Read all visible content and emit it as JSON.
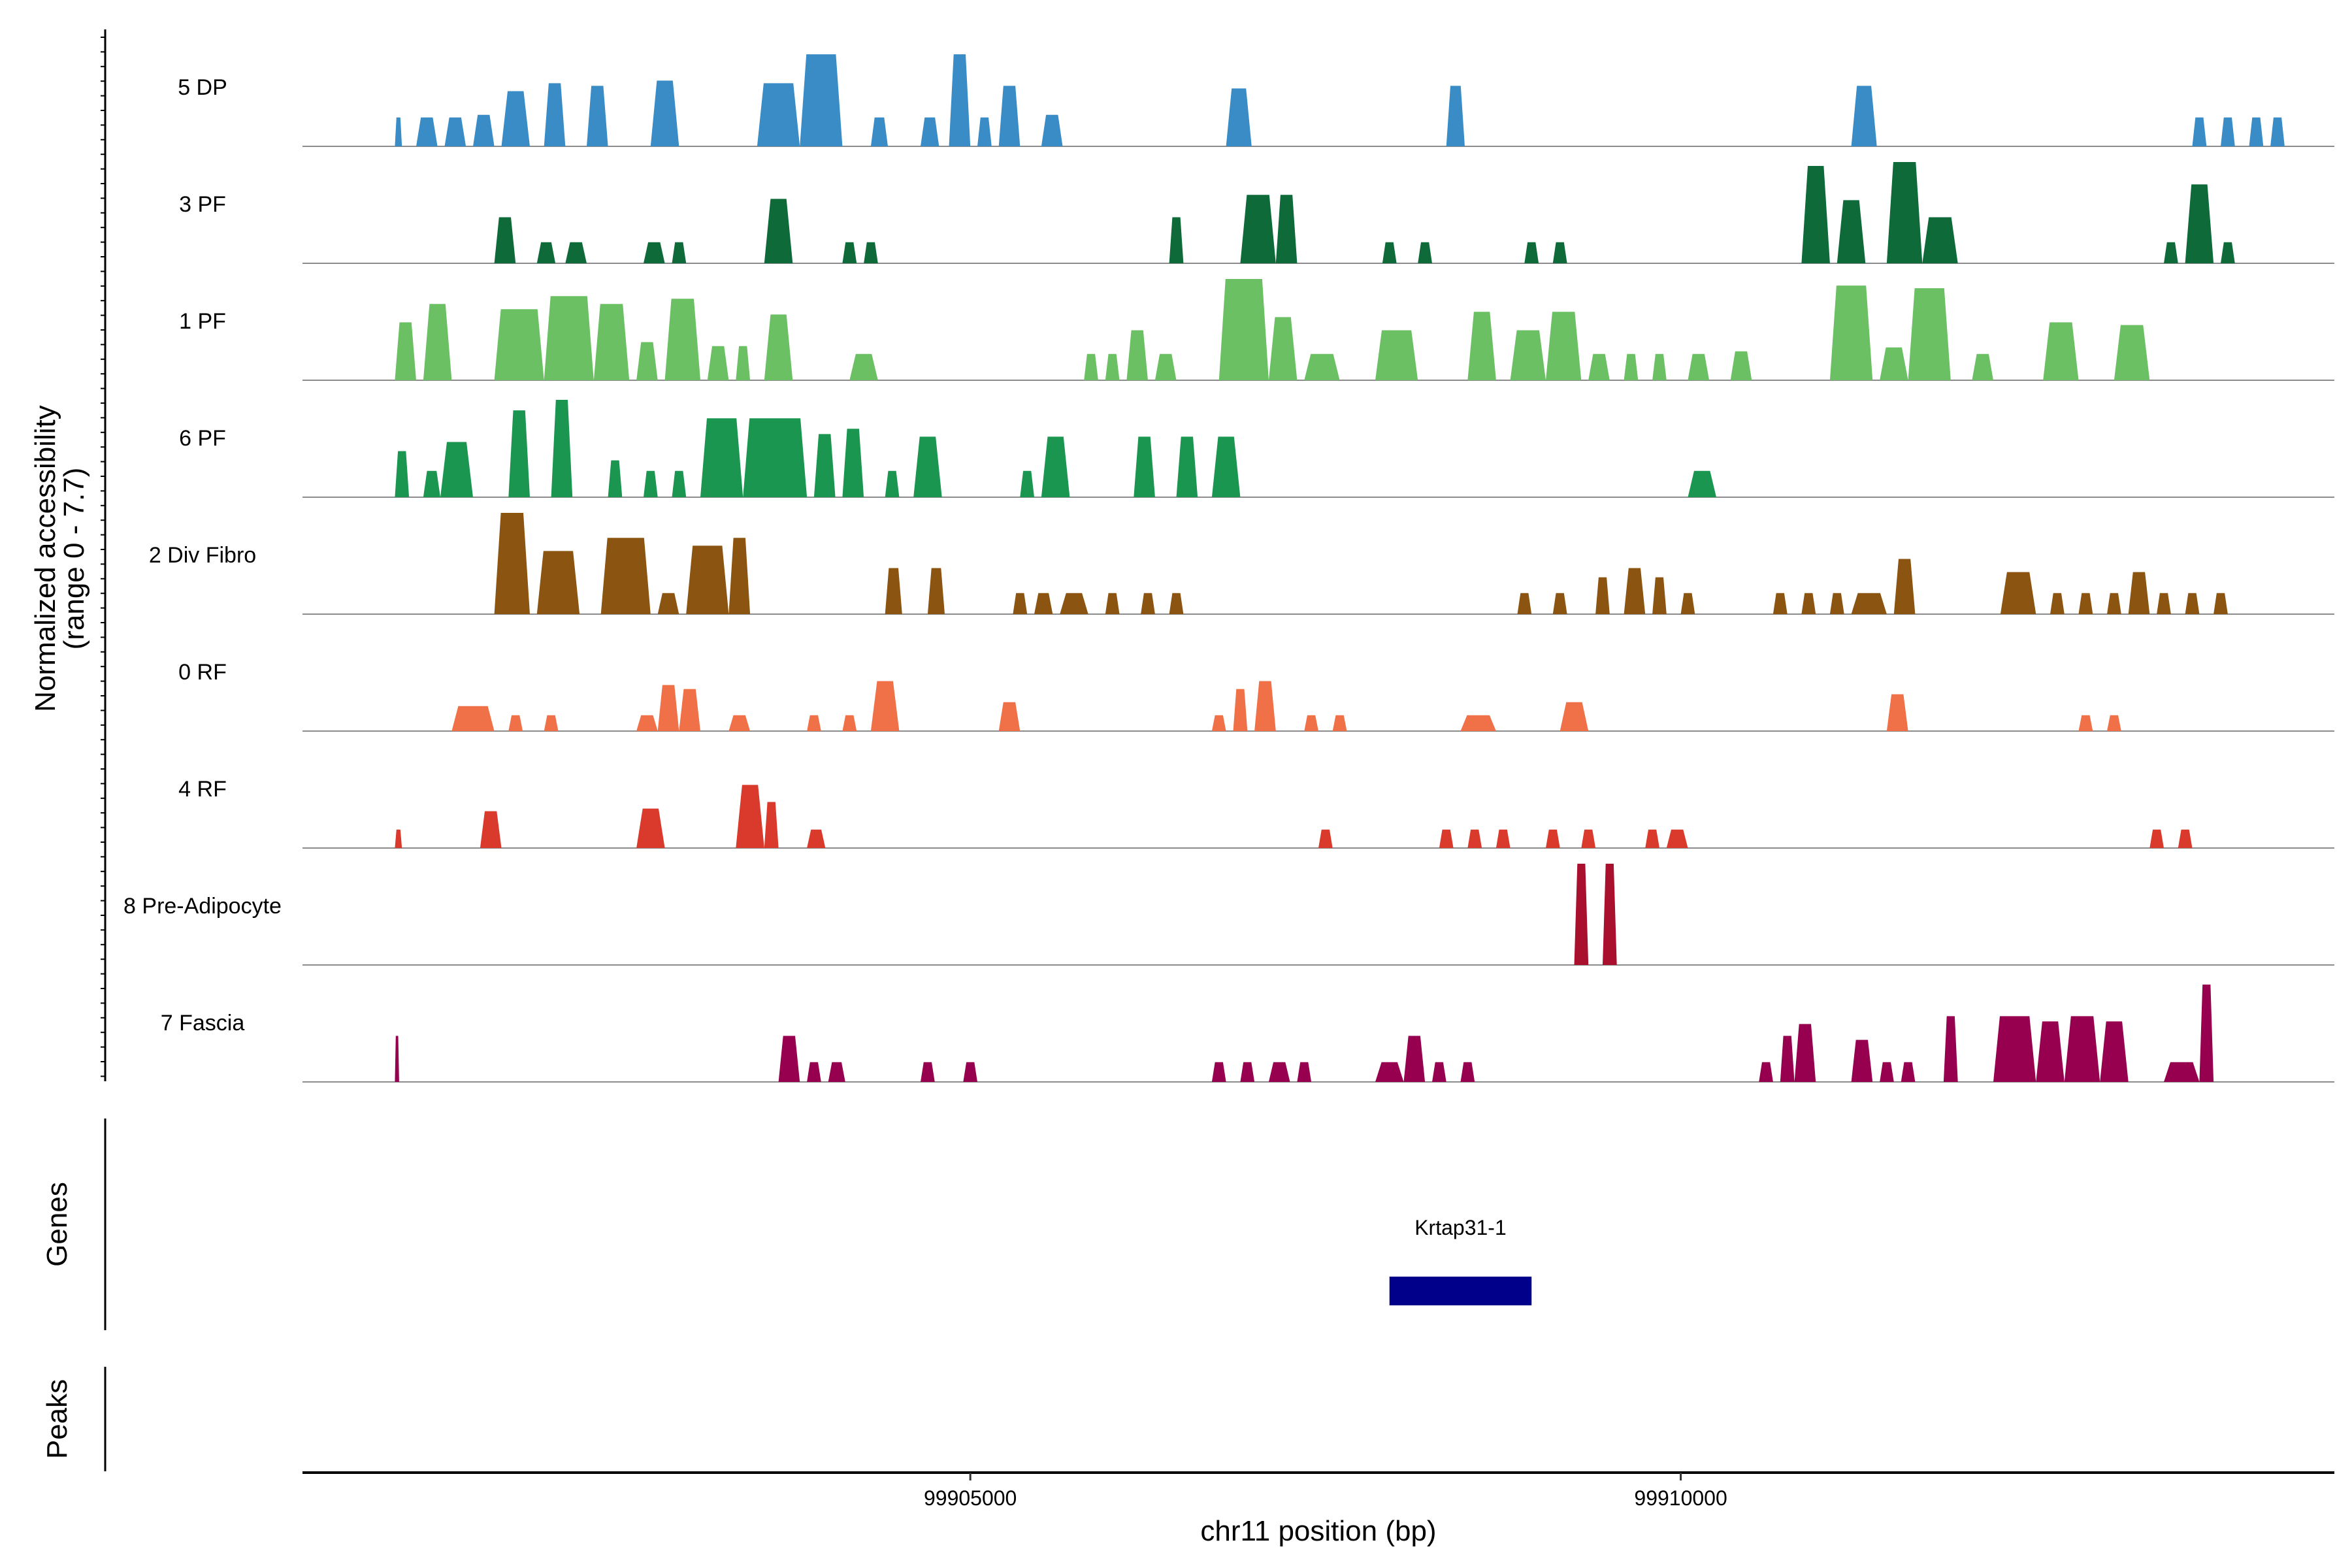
{
  "chart_data": {
    "type": "area",
    "title": "",
    "ylabel": "Normalized accessibility",
    "ylabel_range": "(range 0 - 7.7)",
    "ylim": [
      0,
      7.7
    ],
    "xlabel": "chr11 position (bp)",
    "xlim": [
      99900300,
      99914600
    ],
    "x_ticks": [
      {
        "value": 99905000,
        "label": "99905000"
      },
      {
        "value": 99910000,
        "label": "99910000"
      }
    ],
    "tracks": [
      {
        "name": "5 DP",
        "color": "#3a8cc6",
        "peaks": [
          [
            99900950,
            99901000,
            2.2
          ],
          [
            99901100,
            99901250,
            2.2
          ],
          [
            99901300,
            99901450,
            2.2
          ],
          [
            99901500,
            99901650,
            2.4
          ],
          [
            99901700,
            99901900,
            4.2
          ],
          [
            99902000,
            99902150,
            4.8
          ],
          [
            99902300,
            99902450,
            4.6
          ],
          [
            99902750,
            99902950,
            5.0
          ],
          [
            99903500,
            99903800,
            4.8
          ],
          [
            99903800,
            99904100,
            7.0
          ],
          [
            99904300,
            99904420,
            2.2
          ],
          [
            99904650,
            99904780,
            2.2
          ],
          [
            99904850,
            99905000,
            7.0
          ],
          [
            99905050,
            99905150,
            2.2
          ],
          [
            99905200,
            99905350,
            4.6
          ],
          [
            99905500,
            99905650,
            2.4
          ],
          [
            99906800,
            99906980,
            4.4
          ],
          [
            99908350,
            99908480,
            4.6
          ],
          [
            99911200,
            99911380,
            4.6
          ],
          [
            99913600,
            99913700,
            2.2
          ],
          [
            99913800,
            99913900,
            2.2
          ],
          [
            99914000,
            99914100,
            2.2
          ],
          [
            99914150,
            99914250,
            2.2
          ]
        ]
      },
      {
        "name": "3 PF",
        "color": "#0f6a3a",
        "peaks": [
          [
            99901650,
            99901800,
            3.5
          ],
          [
            99901950,
            99902080,
            1.6
          ],
          [
            99902150,
            99902300,
            1.6
          ],
          [
            99902700,
            99902850,
            1.6
          ],
          [
            99902900,
            99903000,
            1.6
          ],
          [
            99903550,
            99903750,
            4.9
          ],
          [
            99904100,
            99904200,
            1.6
          ],
          [
            99904250,
            99904350,
            1.6
          ],
          [
            99906400,
            99906500,
            3.5
          ],
          [
            99906900,
            99907150,
            5.2
          ],
          [
            99907150,
            99907300,
            5.2
          ],
          [
            99907900,
            99908000,
            1.6
          ],
          [
            99908150,
            99908250,
            1.6
          ],
          [
            99908900,
            99909000,
            1.6
          ],
          [
            99909100,
            99909200,
            1.6
          ],
          [
            99910850,
            99911050,
            7.4
          ],
          [
            99911100,
            99911300,
            4.8
          ],
          [
            99911450,
            99911700,
            7.7
          ],
          [
            99911700,
            99911950,
            3.5
          ],
          [
            99913400,
            99913500,
            1.6
          ],
          [
            99913550,
            99913750,
            6.0
          ],
          [
            99913800,
            99913900,
            1.6
          ]
        ]
      },
      {
        "name": "1 PF",
        "color": "#6cc064",
        "peaks": [
          [
            99900950,
            99901100,
            4.4
          ],
          [
            99901150,
            99901350,
            5.8
          ],
          [
            99901650,
            99902000,
            5.4
          ],
          [
            99902000,
            99902350,
            6.4
          ],
          [
            99902350,
            99902600,
            5.8
          ],
          [
            99902650,
            99902800,
            2.9
          ],
          [
            99902850,
            99903100,
            6.2
          ],
          [
            99903150,
            99903300,
            2.6
          ],
          [
            99903350,
            99903450,
            2.6
          ],
          [
            99903550,
            99903750,
            5.0
          ],
          [
            99904150,
            99904350,
            2.0
          ],
          [
            99905800,
            99905900,
            2.0
          ],
          [
            99905950,
            99906050,
            2.0
          ],
          [
            99906100,
            99906250,
            3.8
          ],
          [
            99906300,
            99906450,
            2.0
          ],
          [
            99906750,
            99907100,
            7.7
          ],
          [
            99907100,
            99907300,
            4.8
          ],
          [
            99907350,
            99907600,
            2.0
          ],
          [
            99907850,
            99908150,
            3.8
          ],
          [
            99908500,
            99908700,
            5.2
          ],
          [
            99908800,
            99909050,
            3.8
          ],
          [
            99909050,
            99909300,
            5.2
          ],
          [
            99909350,
            99909500,
            2.0
          ],
          [
            99909600,
            99909700,
            2.0
          ],
          [
            99909800,
            99909900,
            2.0
          ],
          [
            99910050,
            99910200,
            2.0
          ],
          [
            99910350,
            99910500,
            2.2
          ],
          [
            99911050,
            99911350,
            7.2
          ],
          [
            99911400,
            99911600,
            2.5
          ],
          [
            99911600,
            99911900,
            7.0
          ],
          [
            99912050,
            99912200,
            2.0
          ],
          [
            99912550,
            99912800,
            4.4
          ],
          [
            99913050,
            99913300,
            4.2
          ]
        ]
      },
      {
        "name": "6 PF",
        "color": "#1b9650",
        "peaks": [
          [
            99900950,
            99901050,
            3.5
          ],
          [
            99901150,
            99901270,
            2.0
          ],
          [
            99901270,
            99901500,
            4.2
          ],
          [
            99901750,
            99901900,
            6.6
          ],
          [
            99902050,
            99902200,
            7.4
          ],
          [
            99902450,
            99902550,
            2.8
          ],
          [
            99902700,
            99902800,
            2.0
          ],
          [
            99902900,
            99903000,
            2.0
          ],
          [
            99903100,
            99903400,
            6.0
          ],
          [
            99903400,
            99903850,
            6.0
          ],
          [
            99903900,
            99904050,
            4.8
          ],
          [
            99904100,
            99904250,
            5.2
          ],
          [
            99904400,
            99904500,
            2.0
          ],
          [
            99904600,
            99904800,
            4.6
          ],
          [
            99905350,
            99905450,
            2.0
          ],
          [
            99905500,
            99905700,
            4.6
          ],
          [
            99906150,
            99906300,
            4.6
          ],
          [
            99906450,
            99906600,
            4.6
          ],
          [
            99906700,
            99906900,
            4.6
          ],
          [
            99910050,
            99910250,
            2.0
          ]
        ]
      },
      {
        "name": "2 Div Fibro",
        "color": "#8b5410",
        "peaks": [
          [
            99901650,
            99901900,
            7.7
          ],
          [
            99901950,
            99902250,
            4.8
          ],
          [
            99902400,
            99902750,
            5.8
          ],
          [
            99902800,
            99902950,
            1.6
          ],
          [
            99903000,
            99903300,
            5.2
          ],
          [
            99903300,
            99903450,
            5.8
          ],
          [
            99904400,
            99904520,
            3.5
          ],
          [
            99904700,
            99904820,
            3.5
          ],
          [
            99905300,
            99905400,
            1.6
          ],
          [
            99905450,
            99905580,
            1.6
          ],
          [
            99905630,
            99905830,
            1.6
          ],
          [
            99905950,
            99906050,
            1.6
          ],
          [
            99906200,
            99906300,
            1.6
          ],
          [
            99906400,
            99906500,
            1.6
          ],
          [
            99908850,
            99908950,
            1.6
          ],
          [
            99909100,
            99909200,
            1.6
          ],
          [
            99909400,
            99909500,
            2.8
          ],
          [
            99909600,
            99909750,
            3.5
          ],
          [
            99909800,
            99909900,
            2.8
          ],
          [
            99910000,
            99910100,
            1.6
          ],
          [
            99910650,
            99910750,
            1.6
          ],
          [
            99910850,
            99910950,
            1.6
          ],
          [
            99911050,
            99911150,
            1.6
          ],
          [
            99911200,
            99911450,
            1.6
          ],
          [
            99911500,
            99911650,
            4.2
          ],
          [
            99912250,
            99912500,
            3.2
          ],
          [
            99912600,
            99912700,
            1.6
          ],
          [
            99912800,
            99912900,
            1.6
          ],
          [
            99913000,
            99913100,
            1.6
          ],
          [
            99913150,
            99913300,
            3.2
          ],
          [
            99913350,
            99913450,
            1.6
          ],
          [
            99913550,
            99913650,
            1.6
          ],
          [
            99913750,
            99913850,
            1.6
          ]
        ]
      },
      {
        "name": "0 RF",
        "color": "#f07048",
        "peaks": [
          [
            99901350,
            99901650,
            1.9
          ],
          [
            99901750,
            99901850,
            1.2
          ],
          [
            99902000,
            99902100,
            1.2
          ],
          [
            99902650,
            99902800,
            1.2
          ],
          [
            99902800,
            99902950,
            3.5
          ],
          [
            99902950,
            99903100,
            3.2
          ],
          [
            99903300,
            99903450,
            1.2
          ],
          [
            99903850,
            99903950,
            1.2
          ],
          [
            99904100,
            99904200,
            1.2
          ],
          [
            99904300,
            99904500,
            3.8
          ],
          [
            99905200,
            99905350,
            2.2
          ],
          [
            99906700,
            99906800,
            1.2
          ],
          [
            99906850,
            99906950,
            3.2
          ],
          [
            99907000,
            99907150,
            3.8
          ],
          [
            99907350,
            99907450,
            1.2
          ],
          [
            99907550,
            99907650,
            1.2
          ],
          [
            99908450,
            99908700,
            1.2
          ],
          [
            99909150,
            99909350,
            2.2
          ],
          [
            99911450,
            99911600,
            2.8
          ],
          [
            99912800,
            99912900,
            1.2
          ],
          [
            99913000,
            99913100,
            1.2
          ]
        ]
      },
      {
        "name": "4 RF",
        "color": "#d93a2b",
        "peaks": [
          [
            99900950,
            99901000,
            1.4
          ],
          [
            99901550,
            99901700,
            2.8
          ],
          [
            99902650,
            99902850,
            3.0
          ],
          [
            99903350,
            99903550,
            4.8
          ],
          [
            99903550,
            99903650,
            3.5
          ],
          [
            99903850,
            99903980,
            1.4
          ],
          [
            99907450,
            99907550,
            1.4
          ],
          [
            99908300,
            99908400,
            1.4
          ],
          [
            99908500,
            99908600,
            1.4
          ],
          [
            99908700,
            99908800,
            1.4
          ],
          [
            99909050,
            99909150,
            1.4
          ],
          [
            99909300,
            99909400,
            1.4
          ],
          [
            99909750,
            99909850,
            1.4
          ],
          [
            99909900,
            99910050,
            1.4
          ],
          [
            99913300,
            99913400,
            1.4
          ],
          [
            99913500,
            99913600,
            1.4
          ]
        ]
      },
      {
        "name": "8 Pre-Adipocyte",
        "color": "#a8102e",
        "peaks": [
          [
            99909250,
            99909350,
            7.7
          ],
          [
            99909450,
            99909550,
            7.7
          ]
        ]
      },
      {
        "name": "7 Fascia",
        "color": "#96004f",
        "peaks": [
          [
            99900950,
            99900980,
            3.5
          ],
          [
            99903650,
            99903800,
            3.5
          ],
          [
            99903850,
            99903950,
            1.5
          ],
          [
            99904000,
            99904120,
            1.5
          ],
          [
            99904650,
            99904750,
            1.5
          ],
          [
            99904950,
            99905050,
            1.5
          ],
          [
            99906700,
            99906800,
            1.5
          ],
          [
            99906900,
            99907000,
            1.5
          ],
          [
            99907100,
            99907250,
            1.5
          ],
          [
            99907300,
            99907400,
            1.5
          ],
          [
            99907850,
            99908050,
            1.5
          ],
          [
            99908050,
            99908200,
            3.5
          ],
          [
            99908250,
            99908350,
            1.5
          ],
          [
            99908450,
            99908550,
            1.5
          ],
          [
            99910550,
            99910650,
            1.5
          ],
          [
            99910700,
            99910800,
            3.5
          ],
          [
            99910800,
            99910950,
            4.4
          ],
          [
            99911200,
            99911350,
            3.2
          ],
          [
            99911400,
            99911500,
            1.5
          ],
          [
            99911550,
            99911650,
            1.5
          ],
          [
            99911850,
            99911950,
            5.0
          ],
          [
            99912200,
            99912500,
            5.0
          ],
          [
            99912500,
            99912700,
            4.6
          ],
          [
            99912700,
            99912950,
            5.0
          ],
          [
            99912950,
            99913150,
            4.6
          ],
          [
            99913400,
            99913650,
            1.5
          ],
          [
            99913650,
            99913750,
            7.4
          ]
        ]
      }
    ],
    "genes_label": "Genes",
    "genes": [
      {
        "name": "Krtap31-1",
        "start": 99907950,
        "end": 99908950,
        "color": "#00008b"
      }
    ],
    "peaks_label": "Peaks"
  }
}
